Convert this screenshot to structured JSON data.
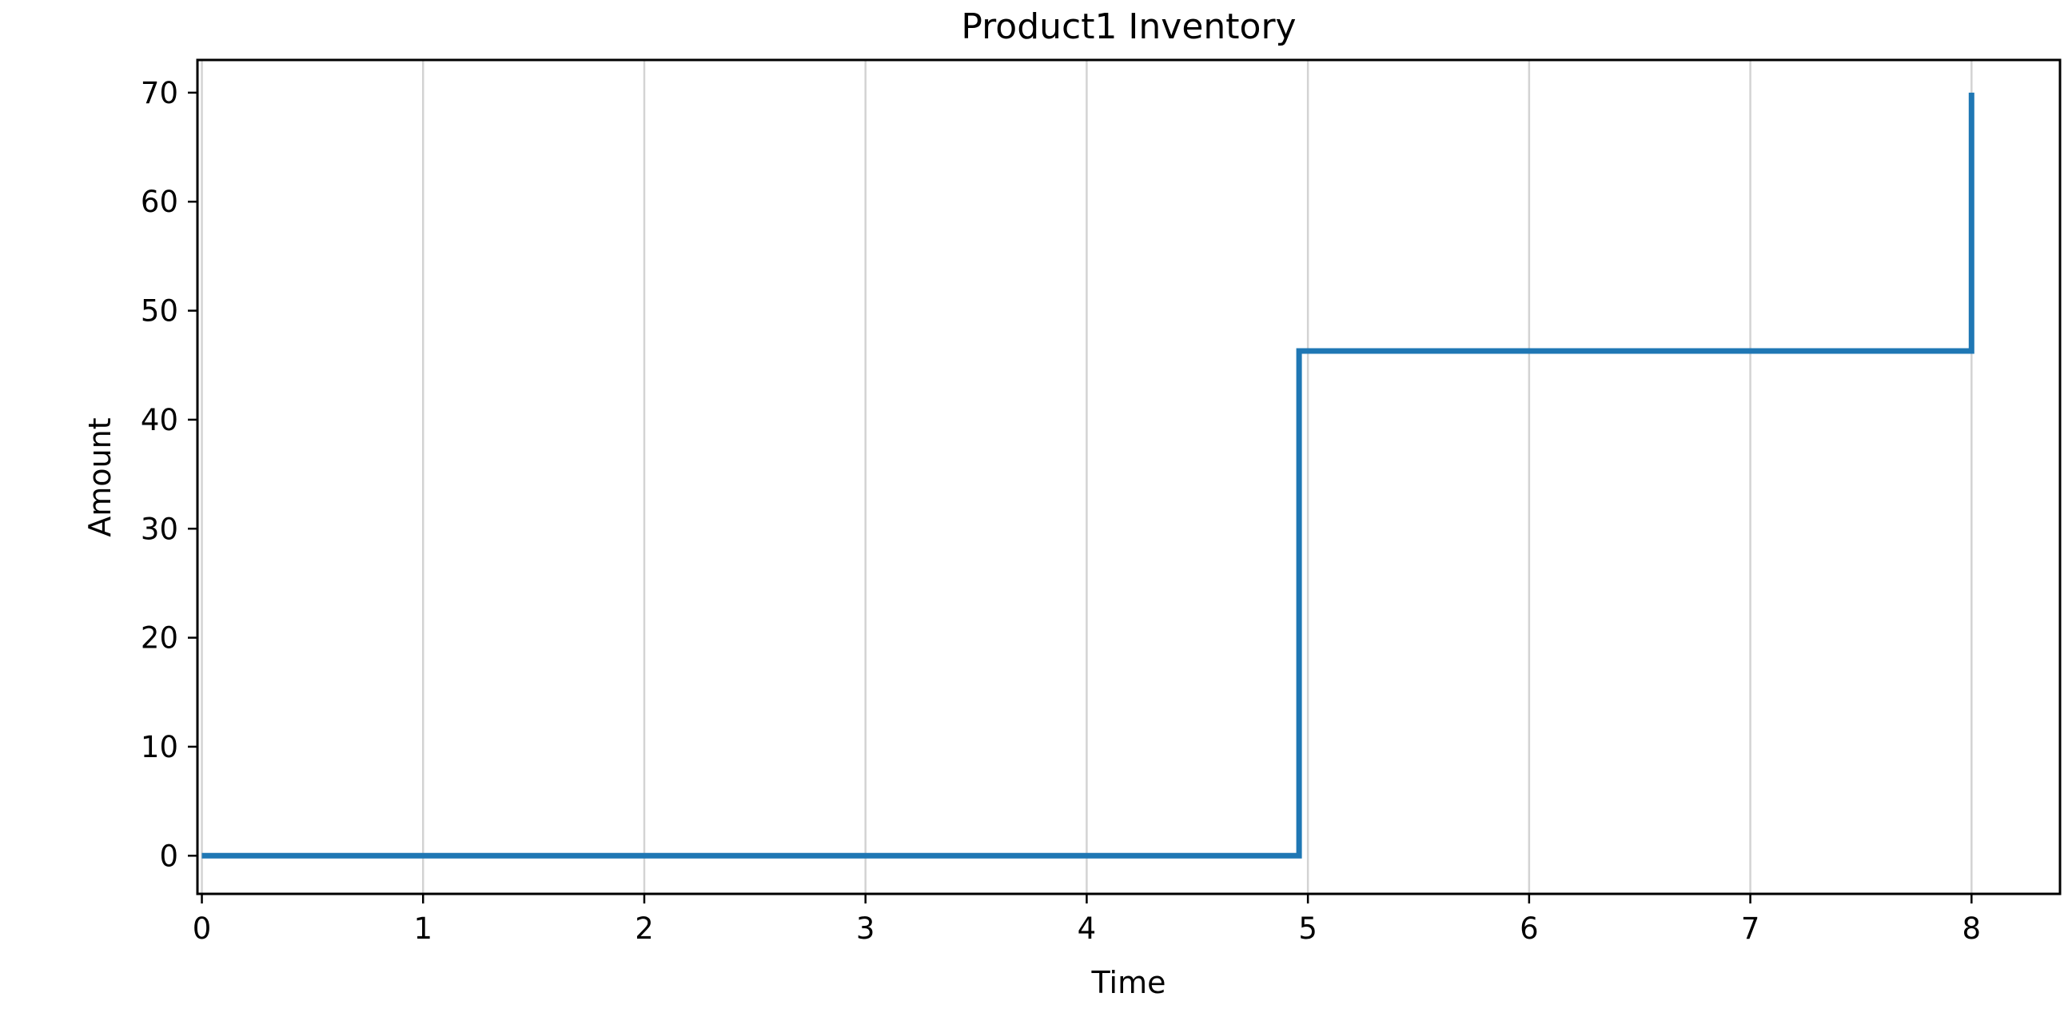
{
  "chart_data": {
    "type": "line",
    "line_style": "step",
    "title": "Product1 Inventory",
    "xlabel": "Time",
    "ylabel": "Amount",
    "xlim": [
      -0.02,
      8.4
    ],
    "ylim": [
      -3.5,
      73
    ],
    "x_ticks": [
      "0",
      "1",
      "2",
      "3",
      "4",
      "5",
      "6",
      "7",
      "8"
    ],
    "y_ticks": [
      "0",
      "10",
      "20",
      "30",
      "40",
      "50",
      "60",
      "70"
    ],
    "x_tick_values": [
      0,
      1,
      2,
      3,
      4,
      5,
      6,
      7,
      8
    ],
    "y_tick_values": [
      0,
      10,
      20,
      30,
      40,
      50,
      60,
      70
    ],
    "grid": "vertical",
    "series": [
      {
        "color": "#1f77b4",
        "points": [
          {
            "x": 0,
            "y": 0
          },
          {
            "x": 4.96,
            "y": 0
          },
          {
            "x": 4.96,
            "y": 46.3
          },
          {
            "x": 8.0,
            "y": 46.3
          },
          {
            "x": 8.0,
            "y": 70
          }
        ]
      }
    ]
  }
}
